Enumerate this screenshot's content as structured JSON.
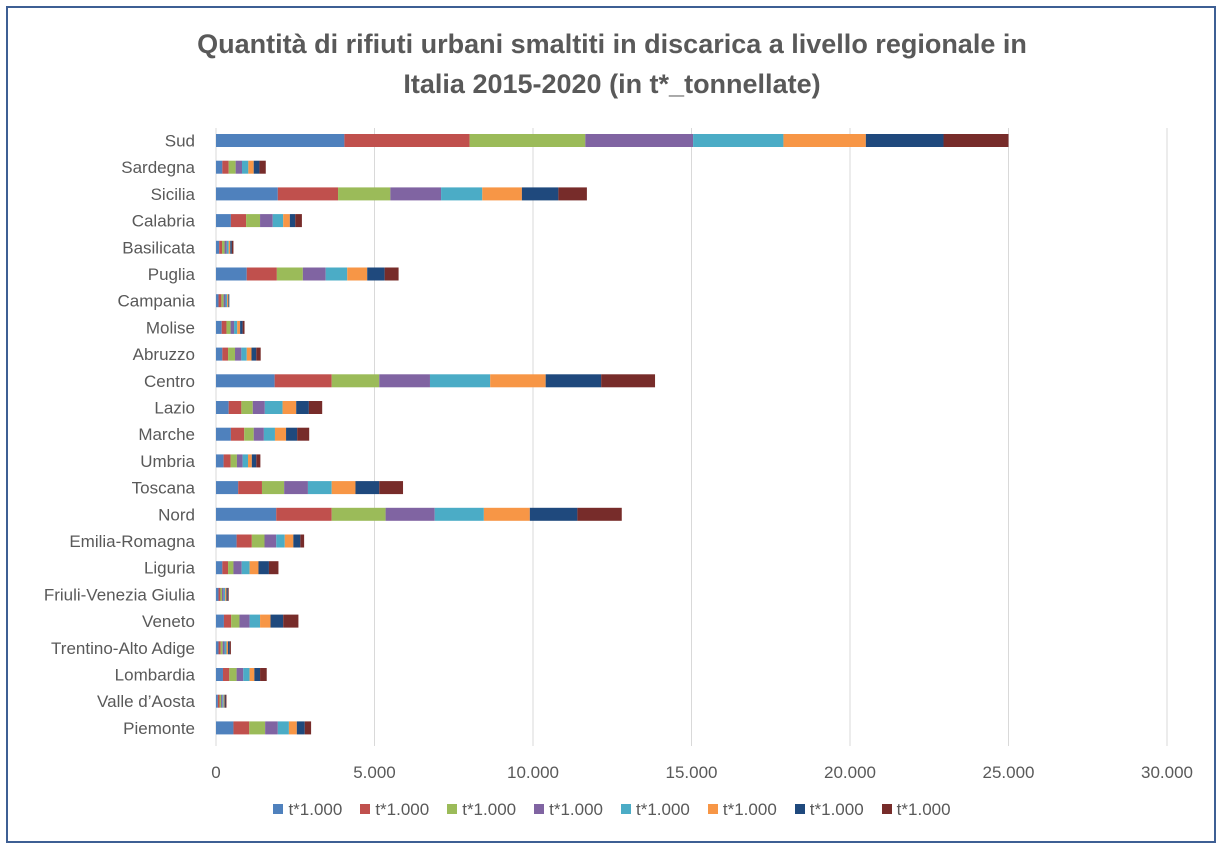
{
  "chart_data": {
    "type": "bar",
    "orientation": "horizontal",
    "stacked": true,
    "title_line1": "Quantità di rifiuti urbani smaltiti in discarica a livello regionale in",
    "title_line2": "Italia 2015-2020 (in t*_tonnellate)",
    "categories": [
      "Sud",
      "Sardegna",
      "Sicilia",
      "Calabria",
      "Basilicata",
      "Puglia",
      "Campania",
      "Molise",
      "Abruzzo",
      "Centro",
      "Lazio",
      "Marche",
      "Umbria",
      "Toscana",
      "Nord",
      "Emilia-Romagna",
      "Liguria",
      "Friuli-Venezia Giulia",
      "Veneto",
      "Trentino-Alto Adige",
      "Lombardia",
      "Valle d’Aosta",
      "Piemonte"
    ],
    "xlim": [
      0,
      30000
    ],
    "x_ticks": [
      "0",
      "5.000",
      "10.000",
      "15.000",
      "20.000",
      "25.000",
      "30.000"
    ],
    "grid": "vertical",
    "legend_position": "bottom",
    "series": [
      {
        "name": "t*1.000",
        "color": "#4f81bd",
        "values": [
          4050,
          200,
          1950,
          470,
          100,
          970,
          80,
          180,
          200,
          1850,
          400,
          470,
          240,
          700,
          1900,
          650,
          200,
          80,
          250,
          80,
          220,
          60,
          550
        ]
      },
      {
        "name": "t*1.000",
        "color": "#c0504d",
        "values": [
          3950,
          200,
          1900,
          480,
          90,
          950,
          90,
          150,
          180,
          1800,
          400,
          420,
          220,
          750,
          1750,
          480,
          180,
          60,
          230,
          70,
          200,
          50,
          500
        ]
      },
      {
        "name": "t*1.000",
        "color": "#9bbb59",
        "values": [
          3650,
          220,
          1650,
          440,
          80,
          820,
          70,
          130,
          220,
          1500,
          360,
          300,
          200,
          700,
          1700,
          400,
          170,
          50,
          260,
          60,
          230,
          50,
          500
        ]
      },
      {
        "name": "t*1.000",
        "color": "#8064a2",
        "values": [
          3400,
          200,
          1600,
          400,
          70,
          720,
          60,
          110,
          200,
          1600,
          380,
          320,
          180,
          750,
          1550,
          370,
          260,
          50,
          320,
          60,
          210,
          40,
          400
        ]
      },
      {
        "name": "t*1.000",
        "color": "#4bacc6",
        "values": [
          2850,
          200,
          1300,
          330,
          60,
          680,
          50,
          100,
          170,
          1900,
          560,
          350,
          170,
          750,
          1550,
          270,
          250,
          50,
          330,
          60,
          200,
          40,
          350
        ]
      },
      {
        "name": "t*1.000",
        "color": "#f79646",
        "values": [
          2600,
          170,
          1250,
          210,
          50,
          630,
          40,
          90,
          150,
          1750,
          430,
          350,
          120,
          750,
          1450,
          270,
          280,
          40,
          330,
          50,
          150,
          30,
          250
        ]
      },
      {
        "name": "t*1.000",
        "color": "#1f497d",
        "values": [
          2450,
          180,
          1150,
          170,
          50,
          550,
          30,
          80,
          150,
          1750,
          400,
          350,
          140,
          750,
          1500,
          220,
          330,
          40,
          400,
          50,
          180,
          30,
          250
        ]
      },
      {
        "name": "t*1.000",
        "color": "#772c2a",
        "values": [
          2050,
          200,
          900,
          210,
          50,
          440,
          0,
          60,
          140,
          1700,
          420,
          380,
          130,
          750,
          1400,
          120,
          300,
          30,
          480,
          40,
          210,
          30,
          200
        ]
      }
    ]
  }
}
